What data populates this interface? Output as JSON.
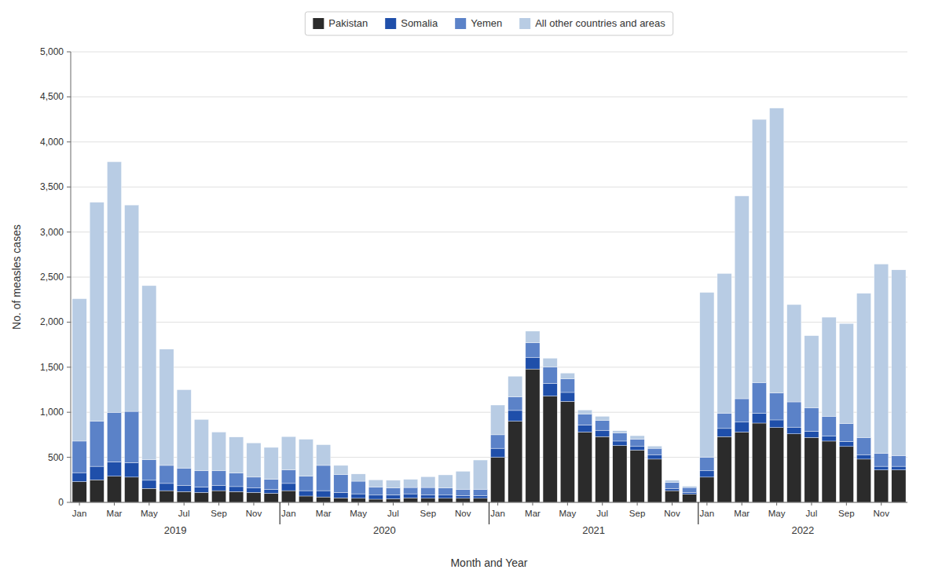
{
  "chart_data": {
    "type": "bar",
    "stacked": true,
    "grid": true,
    "legend": "top",
    "xlabel": "Month and Year",
    "ylabel": "No. of measles cases",
    "annotations": [
      "2019",
      "2020",
      "2021",
      "2022"
    ],
    "categories": [
      "Jan",
      null,
      "Mar",
      null,
      "May",
      null,
      "Jul",
      null,
      "Sep",
      null,
      "Nov",
      null,
      "Jan",
      null,
      "Mar",
      null,
      "May",
      null,
      "Jul",
      null,
      "Sep",
      null,
      "Nov",
      null,
      "Jan",
      null,
      "Mar",
      null,
      "May",
      null,
      "Jul",
      null,
      "Sep",
      null,
      "Nov",
      null,
      "Jan",
      null,
      "Mar",
      null,
      "May",
      null,
      "Jul",
      null,
      "Sep",
      null,
      "Nov",
      null
    ],
    "ylim": [
      0,
      5000
    ],
    "yticks": [
      0,
      500,
      {
        "value": 1000,
        "label": "1,000"
      },
      {
        "value": 1500,
        "label": "1,500"
      },
      {
        "value": 2000,
        "label": "2,000"
      },
      {
        "value": 2500,
        "label": "2,500"
      },
      {
        "value": 3000,
        "label": "3,000"
      },
      {
        "value": 3500,
        "label": "3,500"
      },
      {
        "value": 4000,
        "label": "4,000"
      },
      {
        "value": 4500,
        "label": "4,500"
      },
      {
        "value": 5000,
        "label": "5,000"
      }
    ],
    "series": [
      {
        "name": "Pakistan",
        "color": "#2b2b2b",
        "values": [
          230,
          250,
          290,
          280,
          155,
          130,
          120,
          110,
          130,
          120,
          110,
          100,
          130,
          70,
          60,
          50,
          45,
          35,
          40,
          50,
          45,
          45,
          45,
          45,
          500,
          900,
          1480,
          1180,
          1120,
          780,
          730,
          630,
          580,
          480,
          130,
          90,
          280,
          730,
          780,
          880,
          830,
          760,
          720,
          680,
          620,
          480,
          360,
          360
        ]
      },
      {
        "name": "Somalia",
        "color": "#1f4faa",
        "values": [
          100,
          150,
          160,
          160,
          90,
          80,
          70,
          60,
          60,
          55,
          50,
          45,
          80,
          60,
          70,
          60,
          50,
          45,
          45,
          45,
          40,
          35,
          30,
          30,
          100,
          120,
          130,
          140,
          100,
          80,
          70,
          50,
          40,
          50,
          25,
          20,
          70,
          90,
          110,
          110,
          85,
          75,
          70,
          55,
          55,
          50,
          40,
          40
        ]
      },
      {
        "name": "Yemen",
        "color": "#5b82c8",
        "values": [
          350,
          500,
          550,
          570,
          230,
          200,
          190,
          180,
          160,
          150,
          120,
          110,
          150,
          160,
          280,
          200,
          140,
          90,
          75,
          70,
          80,
          80,
          70,
          70,
          150,
          150,
          160,
          180,
          150,
          120,
          110,
          90,
          80,
          70,
          65,
          55,
          150,
          170,
          260,
          340,
          300,
          280,
          260,
          220,
          200,
          190,
          145,
          120
        ]
      },
      {
        "name": "All other countries and areas",
        "color": "#b8cce4",
        "values": [
          1580,
          2430,
          2780,
          2290,
          1930,
          1290,
          870,
          570,
          430,
          400,
          380,
          355,
          370,
          410,
          230,
          100,
          80,
          80,
          85,
          90,
          120,
          145,
          200,
          325,
          330,
          230,
          130,
          100,
          65,
          45,
          45,
          25,
          40,
          25,
          25,
          15,
          1830,
          1550,
          2250,
          2920,
          3160,
          1080,
          800,
          1100,
          1110,
          1600,
          2100,
          2060
        ]
      }
    ]
  }
}
